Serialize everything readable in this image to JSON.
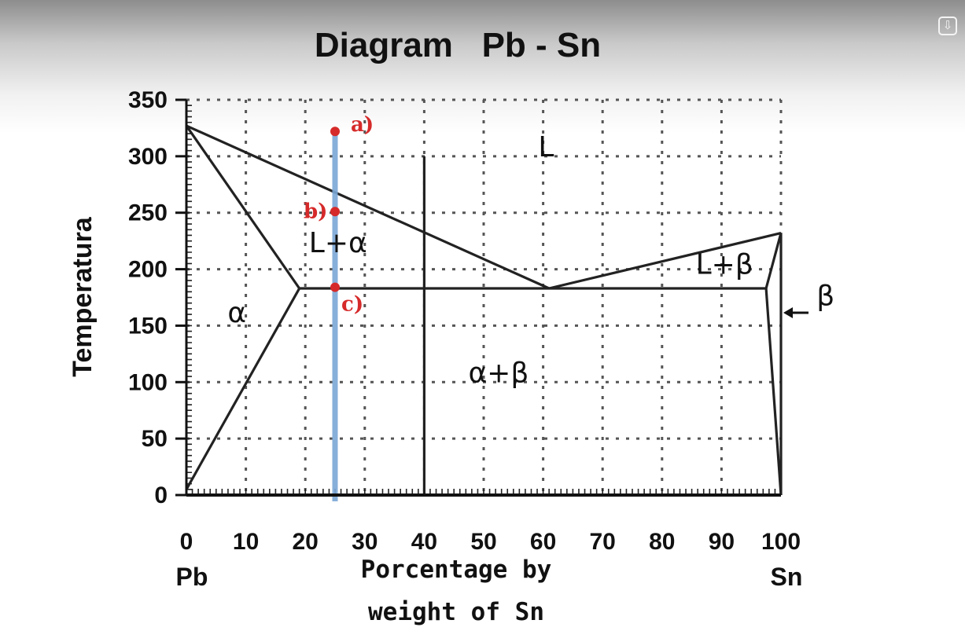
{
  "chart_data": {
    "type": "line",
    "title": "Diagram   Pb - Sn",
    "ylabel": "Temperatura",
    "xlabel_lines": [
      "Porcentage by",
      "weight of Sn"
    ],
    "x_end_labels": {
      "left": "Pb",
      "right": "Sn"
    },
    "xlim": [
      0,
      100
    ],
    "ylim": [
      0,
      350
    ],
    "x_ticks": [
      0,
      10,
      20,
      30,
      40,
      50,
      60,
      70,
      80,
      90,
      100
    ],
    "y_ticks": [
      0,
      50,
      100,
      150,
      200,
      250,
      300,
      350
    ],
    "grid": true,
    "series": [
      {
        "points": [
          [
            0,
            327
          ],
          [
            61,
            183
          ]
        ]
      },
      {
        "points": [
          [
            61,
            183
          ],
          [
            100,
            232
          ]
        ]
      },
      {
        "points": [
          [
            0,
            327
          ],
          [
            19,
            183
          ]
        ]
      },
      {
        "points": [
          [
            19,
            183
          ],
          [
            0,
            5
          ]
        ]
      },
      {
        "points": [
          [
            19,
            183
          ],
          [
            97.5,
            183
          ]
        ]
      },
      {
        "points": [
          [
            100,
            232
          ],
          [
            97.5,
            183
          ]
        ]
      },
      {
        "points": [
          [
            97.5,
            183
          ],
          [
            100,
            0
          ]
        ]
      },
      {
        "points": [
          [
            100,
            232
          ],
          [
            100,
            0
          ]
        ]
      },
      {
        "points": [
          [
            40,
            0
          ],
          [
            40,
            300
          ]
        ]
      }
    ],
    "composition_line": {
      "x": 25,
      "y_range": [
        0,
        325
      ],
      "color": "#7aa6d6"
    },
    "points": [
      {
        "label": "a)",
        "x": 25,
        "y": 322
      },
      {
        "label": "b)",
        "x": 25,
        "y": 251
      },
      {
        "label": "c)",
        "x": 25,
        "y": 184
      }
    ],
    "regions": [
      {
        "label": "L",
        "x": 60.5,
        "y": 300
      },
      {
        "label": "L+α",
        "x": 25.5,
        "y": 215
      },
      {
        "label": "L+β",
        "x": 90.5,
        "y": 196
      },
      {
        "label": "α",
        "x": 8.5,
        "y": 153
      },
      {
        "label": "α+β",
        "x": 52.5,
        "y": 100
      },
      {
        "label": "β",
        "x": 107.5,
        "y": 168
      }
    ],
    "colors": {
      "points": "#d62a2a",
      "composition_line": "#7aa6d6"
    }
  },
  "toolbar": {
    "corner_icon": "download-icon",
    "corner_glyph": "⇩"
  }
}
